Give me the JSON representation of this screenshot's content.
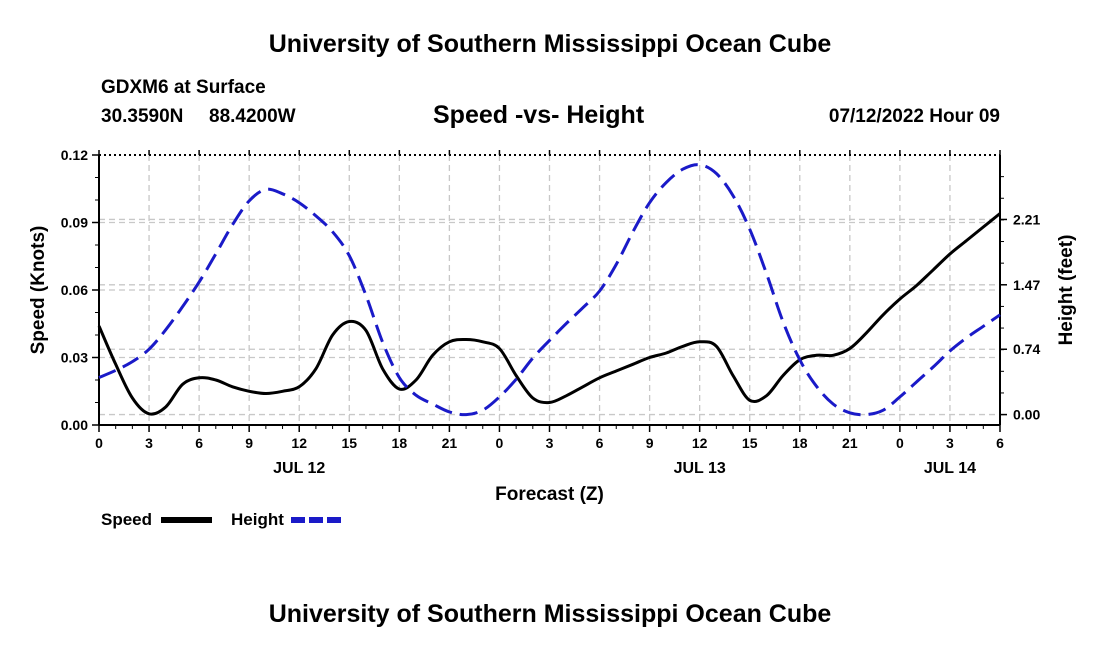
{
  "header": {
    "title": "University of Southern Mississippi Ocean Cube",
    "station": "GDXM6 at Surface",
    "lat": "30.3590N",
    "lon": "88.4200W",
    "chart_title": "Speed -vs- Height",
    "datetime": "07/12/2022 Hour 09"
  },
  "legend": {
    "speed_label": "Speed",
    "height_label": "Height"
  },
  "footer": {
    "title": "University of Southern Mississippi Ocean Cube"
  },
  "colors": {
    "speed": "#000000",
    "height": "#1a1ac8",
    "grid": "#c8c8c8"
  },
  "chart_data": {
    "type": "line",
    "title": "Speed -vs- Height",
    "xlabel": "Forecast (Z)",
    "ylabel_left": "Speed (Knots)",
    "ylabel_right": "Height (feet)",
    "x_range_hours": [
      0,
      54
    ],
    "x_ticks": [
      {
        "h": 0,
        "label": "0"
      },
      {
        "h": 3,
        "label": "3"
      },
      {
        "h": 6,
        "label": "6"
      },
      {
        "h": 9,
        "label": "9"
      },
      {
        "h": 12,
        "label": "12"
      },
      {
        "h": 15,
        "label": "15"
      },
      {
        "h": 18,
        "label": "18"
      },
      {
        "h": 21,
        "label": "21"
      },
      {
        "h": 24,
        "label": "0"
      },
      {
        "h": 27,
        "label": "3"
      },
      {
        "h": 30,
        "label": "6"
      },
      {
        "h": 33,
        "label": "9"
      },
      {
        "h": 36,
        "label": "12"
      },
      {
        "h": 39,
        "label": "15"
      },
      {
        "h": 42,
        "label": "18"
      },
      {
        "h": 45,
        "label": "21"
      },
      {
        "h": 48,
        "label": "0"
      },
      {
        "h": 51,
        "label": "3"
      },
      {
        "h": 54,
        "label": "6"
      }
    ],
    "date_labels": [
      {
        "h": 12,
        "label": "JUL 12"
      },
      {
        "h": 36,
        "label": "JUL 13"
      },
      {
        "h": 51,
        "label": "JUL 14"
      }
    ],
    "y_left": {
      "range": [
        0,
        0.12
      ],
      "ticks": [
        {
          "v": 0.0,
          "label": "0.00"
        },
        {
          "v": 0.03,
          "label": "0.03"
        },
        {
          "v": 0.06,
          "label": "0.06"
        },
        {
          "v": 0.09,
          "label": "0.09"
        },
        {
          "v": 0.12,
          "label": "0.12"
        }
      ]
    },
    "y_right": {
      "range": [
        -0.118,
        2.94
      ],
      "ticks": [
        {
          "v": 0.0,
          "label": "0.00"
        },
        {
          "v": 0.74,
          "label": "0.74"
        },
        {
          "v": 1.47,
          "label": "1.47"
        },
        {
          "v": 2.21,
          "label": "2.21"
        }
      ]
    },
    "series": [
      {
        "name": "Speed",
        "units": "knots",
        "axis": "left",
        "style": "solid",
        "points": [
          [
            0,
            0.044
          ],
          [
            1,
            0.027
          ],
          [
            2,
            0.012
          ],
          [
            3,
            0.005
          ],
          [
            4,
            0.008
          ],
          [
            5,
            0.018
          ],
          [
            6,
            0.021
          ],
          [
            7,
            0.02
          ],
          [
            8,
            0.017
          ],
          [
            9,
            0.015
          ],
          [
            10,
            0.014
          ],
          [
            11,
            0.015
          ],
          [
            12,
            0.017
          ],
          [
            13,
            0.025
          ],
          [
            14,
            0.04
          ],
          [
            15,
            0.046
          ],
          [
            16,
            0.042
          ],
          [
            17,
            0.025
          ],
          [
            18,
            0.016
          ],
          [
            19,
            0.02
          ],
          [
            20,
            0.031
          ],
          [
            21,
            0.037
          ],
          [
            22,
            0.038
          ],
          [
            23,
            0.037
          ],
          [
            24,
            0.034
          ],
          [
            25,
            0.022
          ],
          [
            26,
            0.012
          ],
          [
            27,
            0.01
          ],
          [
            28,
            0.013
          ],
          [
            29,
            0.017
          ],
          [
            30,
            0.021
          ],
          [
            31,
            0.024
          ],
          [
            32,
            0.027
          ],
          [
            33,
            0.03
          ],
          [
            34,
            0.032
          ],
          [
            35,
            0.035
          ],
          [
            36,
            0.037
          ],
          [
            37,
            0.035
          ],
          [
            38,
            0.022
          ],
          [
            39,
            0.011
          ],
          [
            40,
            0.013
          ],
          [
            41,
            0.022
          ],
          [
            42,
            0.029
          ],
          [
            43,
            0.031
          ],
          [
            44,
            0.031
          ],
          [
            45,
            0.034
          ],
          [
            46,
            0.041
          ],
          [
            47,
            0.049
          ],
          [
            48,
            0.056
          ],
          [
            49,
            0.062
          ],
          [
            50,
            0.069
          ],
          [
            51,
            0.076
          ],
          [
            52,
            0.082
          ],
          [
            53,
            0.088
          ],
          [
            54,
            0.094
          ]
        ]
      },
      {
        "name": "Height",
        "units": "feet",
        "axis": "right",
        "style": "dashed",
        "points": [
          [
            0,
            0.42
          ],
          [
            1,
            0.5
          ],
          [
            2,
            0.6
          ],
          [
            3,
            0.74
          ],
          [
            4,
            0.96
          ],
          [
            5,
            1.22
          ],
          [
            6,
            1.5
          ],
          [
            7,
            1.82
          ],
          [
            8,
            2.15
          ],
          [
            9,
            2.42
          ],
          [
            10,
            2.55
          ],
          [
            11,
            2.5
          ],
          [
            12,
            2.4
          ],
          [
            13,
            2.25
          ],
          [
            14,
            2.07
          ],
          [
            15,
            1.8
          ],
          [
            16,
            1.35
          ],
          [
            17,
            0.82
          ],
          [
            18,
            0.42
          ],
          [
            19,
            0.22
          ],
          [
            20,
            0.12
          ],
          [
            21,
            0.03
          ],
          [
            22,
            0.0
          ],
          [
            23,
            0.05
          ],
          [
            24,
            0.2
          ],
          [
            25,
            0.4
          ],
          [
            26,
            0.64
          ],
          [
            27,
            0.84
          ],
          [
            28,
            1.03
          ],
          [
            29,
            1.21
          ],
          [
            30,
            1.4
          ],
          [
            31,
            1.7
          ],
          [
            32,
            2.07
          ],
          [
            33,
            2.4
          ],
          [
            34,
            2.63
          ],
          [
            35,
            2.78
          ],
          [
            36,
            2.83
          ],
          [
            37,
            2.73
          ],
          [
            38,
            2.48
          ],
          [
            39,
            2.1
          ],
          [
            40,
            1.6
          ],
          [
            41,
            1.05
          ],
          [
            42,
            0.62
          ],
          [
            43,
            0.32
          ],
          [
            44,
            0.12
          ],
          [
            45,
            0.02
          ],
          [
            46,
            0.0
          ],
          [
            47,
            0.05
          ],
          [
            48,
            0.2
          ],
          [
            49,
            0.37
          ],
          [
            50,
            0.54
          ],
          [
            51,
            0.72
          ],
          [
            52,
            0.87
          ],
          [
            53,
            1.0
          ],
          [
            54,
            1.13
          ]
        ]
      }
    ]
  }
}
